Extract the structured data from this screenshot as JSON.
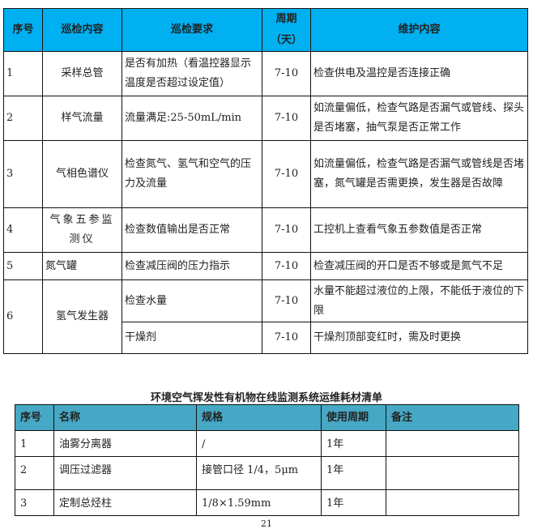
{
  "table1": {
    "headers": [
      "序号",
      "巡检内容",
      "巡检要求",
      "周期（天）",
      "维护内容"
    ],
    "rows": [
      [
        "1",
        "采样总管",
        "是否有加热（看温控器显示温度是否超过设定值）",
        "7-10",
        "检查供电及温控是否连接正确"
      ],
      [
        "2",
        "样气流量",
        "流量满足:25-50mL/min",
        "7-10",
        "如流量偏低，检查气路是否漏气或管线、探头是否堵塞，抽气泵是否正常工作"
      ],
      [
        "3",
        "气相色谱仪",
        "检查氮气、氢气和空气的压力及流量",
        "7-10",
        "如流量偏低，检查气路是否漏气或管线是否堵塞，氮气罐是否需更换，发生器是否故障"
      ],
      [
        "4",
        "气象五参监测仪",
        "检查数值输出是否正常",
        "7-10",
        "工控机上查看气象五参数值是否正常"
      ],
      [
        "5",
        "氮气罐",
        "检查减压阀的压力指示",
        "7-10",
        "检查减压阀的开口是否不够或是氮气不足"
      ],
      [
        "6",
        "氢气发生器",
        "检查水量",
        "7-10",
        "水量不能超过液位的上限，不能低于液位的下限"
      ],
      [
        "",
        "",
        "干燥剂",
        "7-10",
        "干燥剂顶部变红时，需及时更换"
      ]
    ]
  },
  "table2": {
    "title": "环境空气挥发性有机物在线监测系统运维耗材清单",
    "headers": [
      "序号",
      "名称",
      "规格",
      "使用周期",
      "备注"
    ],
    "rows": [
      [
        "1",
        "油雾分离器",
        "/",
        "1年",
        ""
      ],
      [
        "2",
        "调压过滤器",
        "接管口径 1/4，5μm",
        "1年",
        ""
      ],
      [
        "3",
        "定制总烃柱",
        "1/8×1.59mm",
        "1年",
        ""
      ]
    ]
  },
  "page_number": "21",
  "colors": {
    "header1": "#00b0f0",
    "header2": "#46a8c4"
  }
}
